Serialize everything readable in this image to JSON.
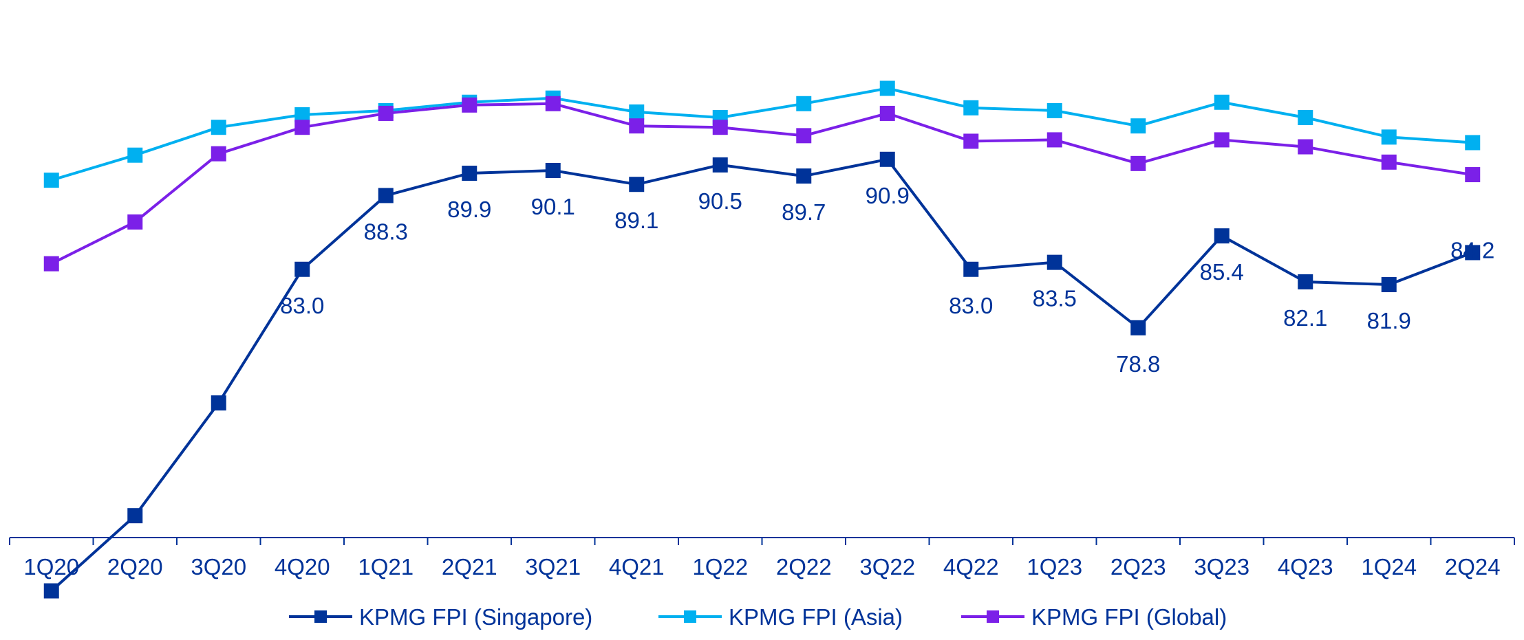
{
  "chart_data": {
    "type": "line",
    "title": "",
    "xlabel": "",
    "ylabel": "",
    "categories": [
      "1Q20",
      "2Q20",
      "3Q20",
      "4Q20",
      "1Q21",
      "2Q21",
      "3Q21",
      "4Q21",
      "1Q22",
      "2Q22",
      "3Q22",
      "4Q22",
      "1Q23",
      "2Q23",
      "3Q23",
      "4Q23",
      "1Q24",
      "2Q24"
    ],
    "ylim": [
      58,
      98
    ],
    "grid": false,
    "legend_position": "bottom",
    "series": [
      {
        "name": "KPMG FPI (Asia)",
        "color": "#00b0f0",
        "values": [
          89.4,
          91.2,
          93.2,
          94.1,
          94.4,
          95.0,
          95.3,
          94.3,
          93.9,
          94.9,
          96.0,
          94.6,
          94.4,
          93.3,
          95.0,
          93.9,
          92.5,
          92.1
        ]
      },
      {
        "name": "KPMG FPI (Global)",
        "color": "#7b20e8",
        "values": [
          83.4,
          86.4,
          91.3,
          93.2,
          94.2,
          94.8,
          94.9,
          93.3,
          93.2,
          92.6,
          94.2,
          92.2,
          92.3,
          90.6,
          92.3,
          91.8,
          90.7,
          89.8
        ]
      },
      {
        "name": "KPMG FPI (Singapore)",
        "color": "#003399",
        "values": [
          59.9,
          65.3,
          73.4,
          83.0,
          88.3,
          89.9,
          90.1,
          89.1,
          90.5,
          89.7,
          90.9,
          83.0,
          83.5,
          78.8,
          85.4,
          82.1,
          81.9,
          84.2
        ],
        "data_labels": [
          "",
          "",
          "",
          "83.0",
          "88.3",
          "89.9",
          "90.1",
          "89.1",
          "90.5",
          "89.7",
          "90.9",
          "83.0",
          "83.5",
          "78.8",
          "85.4",
          "82.1",
          "81.9",
          "84.2"
        ]
      }
    ],
    "legend": [
      "KPMG FPI (Singapore)",
      "KPMG FPI (Asia)",
      "KPMG FPI (Global)"
    ]
  }
}
